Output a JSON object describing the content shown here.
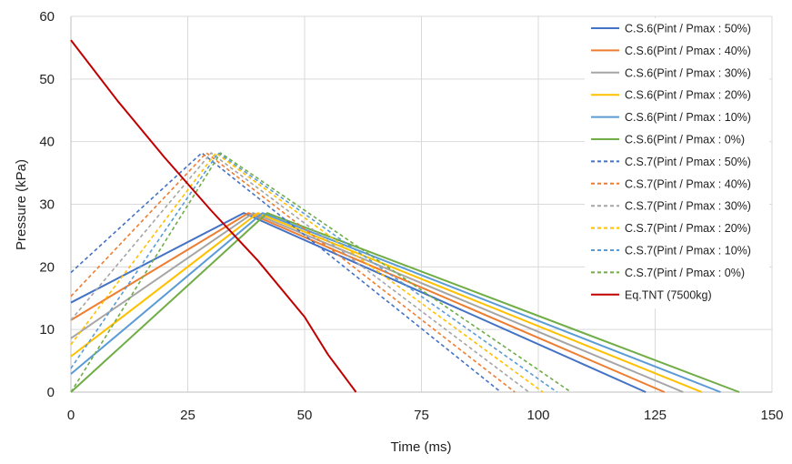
{
  "chart_data": {
    "type": "line",
    "title": "",
    "xlabel": "Time (ms)",
    "ylabel": "Pressure (kPa)",
    "xlim": [
      0,
      150
    ],
    "ylim": [
      0,
      60
    ],
    "xticks": [
      0,
      25,
      50,
      75,
      100,
      125,
      150
    ],
    "yticks": [
      0,
      10,
      20,
      30,
      40,
      50,
      60
    ],
    "grid": true,
    "legend_position": "right",
    "series": [
      {
        "name": "C.S.6(Pint / Pmax : 50%)",
        "color": "#4472c4",
        "dash": "solid",
        "x": [
          0,
          37,
          123
        ],
        "y": [
          14.3,
          28.6,
          0
        ]
      },
      {
        "name": "C.S.6(Pint / Pmax : 40%)",
        "color": "#ed7d31",
        "dash": "solid",
        "x": [
          0,
          38,
          127
        ],
        "y": [
          11.5,
          28.6,
          0
        ]
      },
      {
        "name": "C.S.6(Pint / Pmax : 30%)",
        "color": "#a5a5a5",
        "dash": "solid",
        "x": [
          0,
          39,
          131
        ],
        "y": [
          8.6,
          28.6,
          0
        ]
      },
      {
        "name": "C.S.6(Pint / Pmax : 20%)",
        "color": "#ffc000",
        "dash": "solid",
        "x": [
          0,
          40,
          135
        ],
        "y": [
          5.7,
          28.6,
          0
        ]
      },
      {
        "name": "C.S.6(Pint / Pmax : 10%)",
        "color": "#5b9bd5",
        "dash": "solid",
        "x": [
          0,
          41,
          139
        ],
        "y": [
          2.9,
          28.6,
          0
        ]
      },
      {
        "name": "C.S.6(Pint / Pmax : 0%)",
        "color": "#70ad47",
        "dash": "solid",
        "x": [
          0,
          42,
          143
        ],
        "y": [
          0,
          28.6,
          0
        ]
      },
      {
        "name": "C.S.7(Pint / Pmax : 50%)",
        "color": "#4472c4",
        "dash": "dashed",
        "x": [
          0,
          28,
          92
        ],
        "y": [
          19.1,
          38.2,
          0
        ]
      },
      {
        "name": "C.S.7(Pint / Pmax : 40%)",
        "color": "#ed7d31",
        "dash": "dashed",
        "x": [
          0,
          29,
          95
        ],
        "y": [
          15.3,
          38.2,
          0
        ]
      },
      {
        "name": "C.S.7(Pint / Pmax : 30%)",
        "color": "#a5a5a5",
        "dash": "dashed",
        "x": [
          0,
          30,
          98
        ],
        "y": [
          11.5,
          38.2,
          0
        ]
      },
      {
        "name": "C.S.7(Pint / Pmax : 20%)",
        "color": "#ffc000",
        "dash": "dashed",
        "x": [
          0,
          31,
          101
        ],
        "y": [
          7.6,
          38.2,
          0
        ]
      },
      {
        "name": "C.S.7(Pint / Pmax : 10%)",
        "color": "#5b9bd5",
        "dash": "dashed",
        "x": [
          0,
          31.5,
          104
        ],
        "y": [
          3.8,
          38.2,
          0
        ]
      },
      {
        "name": "C.S.7(Pint / Pmax : 0%)",
        "color": "#70ad47",
        "dash": "dashed",
        "x": [
          0,
          32,
          107
        ],
        "y": [
          0,
          38.2,
          0
        ]
      },
      {
        "name": "Eq.TNT (7500kg)",
        "color": "#c00000",
        "dash": "solid",
        "x": [
          0,
          10,
          20,
          30,
          40,
          50,
          55,
          61
        ],
        "y": [
          56.2,
          46.5,
          37.5,
          29,
          21,
          12,
          6,
          0
        ]
      }
    ]
  }
}
